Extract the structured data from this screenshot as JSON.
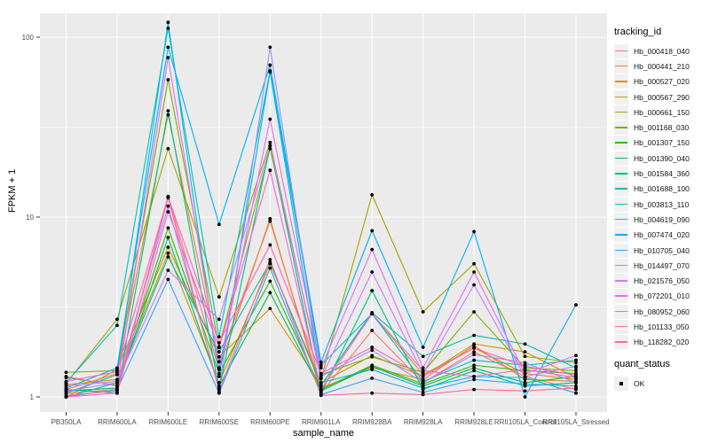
{
  "chart_data": {
    "type": "line",
    "xlabel": "sample_name",
    "ylabel": "FPKM + 1",
    "y_scale": "log10",
    "y_ticks": [
      1,
      10,
      100
    ],
    "y_minor_ticks": [
      3.162,
      31.62
    ],
    "ylim": [
      0.82,
      135
    ],
    "grid": true,
    "panel_bg": "#EBEBEB",
    "grid_color": "#FFFFFF",
    "point_color": "#000000",
    "legend_position": "right",
    "categories": [
      "PB350LA",
      "RRIM600LA",
      "RRIM600LE",
      "RRIM600SE",
      "RRIM600PE",
      "RRIM901LA",
      "RRIM928BA",
      "RRIM928LA",
      "RRIM928LE",
      "RRII105LA_Control",
      "RRII105LA_Stressed"
    ],
    "series": [
      {
        "name": "Hb_000418_040",
        "color": "#F8766D",
        "values": [
          1.05,
          1.1,
          13.0,
          1.42,
          9.8,
          1.05,
          2.34,
          1.2,
          1.78,
          1.3,
          1.1
        ]
      },
      {
        "name": "Hb_000441_210",
        "color": "#EA8331",
        "values": [
          1.1,
          1.35,
          37.0,
          1.57,
          9.5,
          1.12,
          1.45,
          1.25,
          1.93,
          1.25,
          1.22
        ]
      },
      {
        "name": "Hb_000527_020",
        "color": "#D89000",
        "values": [
          1.0,
          1.42,
          6.8,
          1.67,
          3.1,
          1.16,
          2.9,
          1.33,
          1.87,
          1.35,
          1.25
        ]
      },
      {
        "name": "Hb_000567_290",
        "color": "#C09B00",
        "values": [
          1.17,
          1.25,
          6.3,
          1.2,
          5.5,
          1.2,
          1.7,
          1.3,
          1.97,
          1.78,
          1.28
        ]
      },
      {
        "name": "Hb_000661_150",
        "color": "#A3A500",
        "values": [
          1.19,
          2.7,
          24.0,
          3.6,
          26.0,
          1.26,
          13.3,
          2.97,
          5.5,
          1.68,
          1.55
        ]
      },
      {
        "name": "Hb_001168_030",
        "color": "#7CAE00",
        "values": [
          1.37,
          1.4,
          58.0,
          1.9,
          24.0,
          1.33,
          1.67,
          1.37,
          2.97,
          1.45,
          1.4
        ]
      },
      {
        "name": "Hb_001307_150",
        "color": "#39B600",
        "values": [
          1.28,
          1.16,
          8.7,
          1.35,
          4.4,
          1.1,
          1.5,
          1.18,
          1.5,
          1.4,
          1.35
        ]
      },
      {
        "name": "Hb_001390_040",
        "color": "#00BB4E",
        "values": [
          1.08,
          1.12,
          7.7,
          1.15,
          3.8,
          1.08,
          1.48,
          1.15,
          1.45,
          1.2,
          1.3
        ]
      },
      {
        "name": "Hb_001584_360",
        "color": "#00BF7D",
        "values": [
          1.1,
          1.05,
          39.0,
          1.1,
          25.0,
          1.05,
          3.9,
          1.1,
          1.4,
          1.15,
          1.2
        ]
      },
      {
        "name": "Hb_001688_100",
        "color": "#00C1A3",
        "values": [
          1.0,
          1.2,
          6.0,
          1.78,
          5.6,
          1.16,
          2.94,
          1.68,
          2.2,
          1.97,
          1.45
        ]
      },
      {
        "name": "Hb_003813_110",
        "color": "#00BFC4",
        "values": [
          1.2,
          2.5,
          112.0,
          2.16,
          65.0,
          1.5,
          2.9,
          1.22,
          1.6,
          1.5,
          1.6
        ]
      },
      {
        "name": "Hb_004619_090",
        "color": "#00BAE0",
        "values": [
          1.05,
          1.33,
          121.0,
          1.3,
          64.0,
          1.2,
          1.42,
          1.12,
          1.3,
          1.28,
          1.05
        ]
      },
      {
        "name": "Hb_007474_020",
        "color": "#00B0F6",
        "values": [
          1.12,
          1.45,
          88.0,
          9.1,
          70.0,
          1.56,
          8.4,
          1.89,
          8.3,
          1.0,
          3.25
        ]
      },
      {
        "name": "Hb_010705_040",
        "color": "#35A2FF",
        "values": [
          1.0,
          1.1,
          4.5,
          1.05,
          5.2,
          1.03,
          1.27,
          1.06,
          1.25,
          1.18,
          1.15
        ]
      },
      {
        "name": "Hb_014497_070",
        "color": "#9590FF",
        "values": [
          1.08,
          1.2,
          11.5,
          1.12,
          88.0,
          1.3,
          1.82,
          1.2,
          1.72,
          1.55,
          1.2
        ]
      },
      {
        "name": "Hb_021576_050",
        "color": "#C77CFF",
        "values": [
          1.15,
          1.22,
          5.06,
          2.7,
          25.0,
          1.28,
          4.95,
          1.35,
          4.2,
          1.3,
          1.48
        ]
      },
      {
        "name": "Hb_072201_010",
        "color": "#E76BF3",
        "values": [
          1.3,
          1.15,
          77.0,
          1.45,
          35.0,
          1.45,
          6.6,
          1.45,
          4.95,
          1.35,
          1.7
        ]
      },
      {
        "name": "Hb_080952_060",
        "color": "#FA62DB",
        "values": [
          1.0,
          1.05,
          10.7,
          1.88,
          18.2,
          1.1,
          2.9,
          1.4,
          1.3,
          1.42,
          1.28
        ]
      },
      {
        "name": "Hb_101133_050",
        "color": "#FF62BC",
        "values": [
          1.22,
          1.38,
          13.0,
          2.0,
          7.0,
          1.35,
          1.89,
          1.3,
          1.87,
          1.48,
          1.32
        ]
      },
      {
        "name": "Hb_118282_020",
        "color": "#FF6A98",
        "values": [
          1.02,
          1.08,
          12.8,
          1.08,
          5.8,
          1.02,
          1.05,
          1.03,
          1.1,
          1.08,
          1.12
        ]
      }
    ],
    "legend_title": "tracking_id",
    "legend2_title": "quant_status",
    "legend2_items": [
      {
        "label": "OK"
      }
    ]
  },
  "labels": {
    "x_axis_title": "sample_name",
    "y_axis_title": "FPKM + 1"
  }
}
